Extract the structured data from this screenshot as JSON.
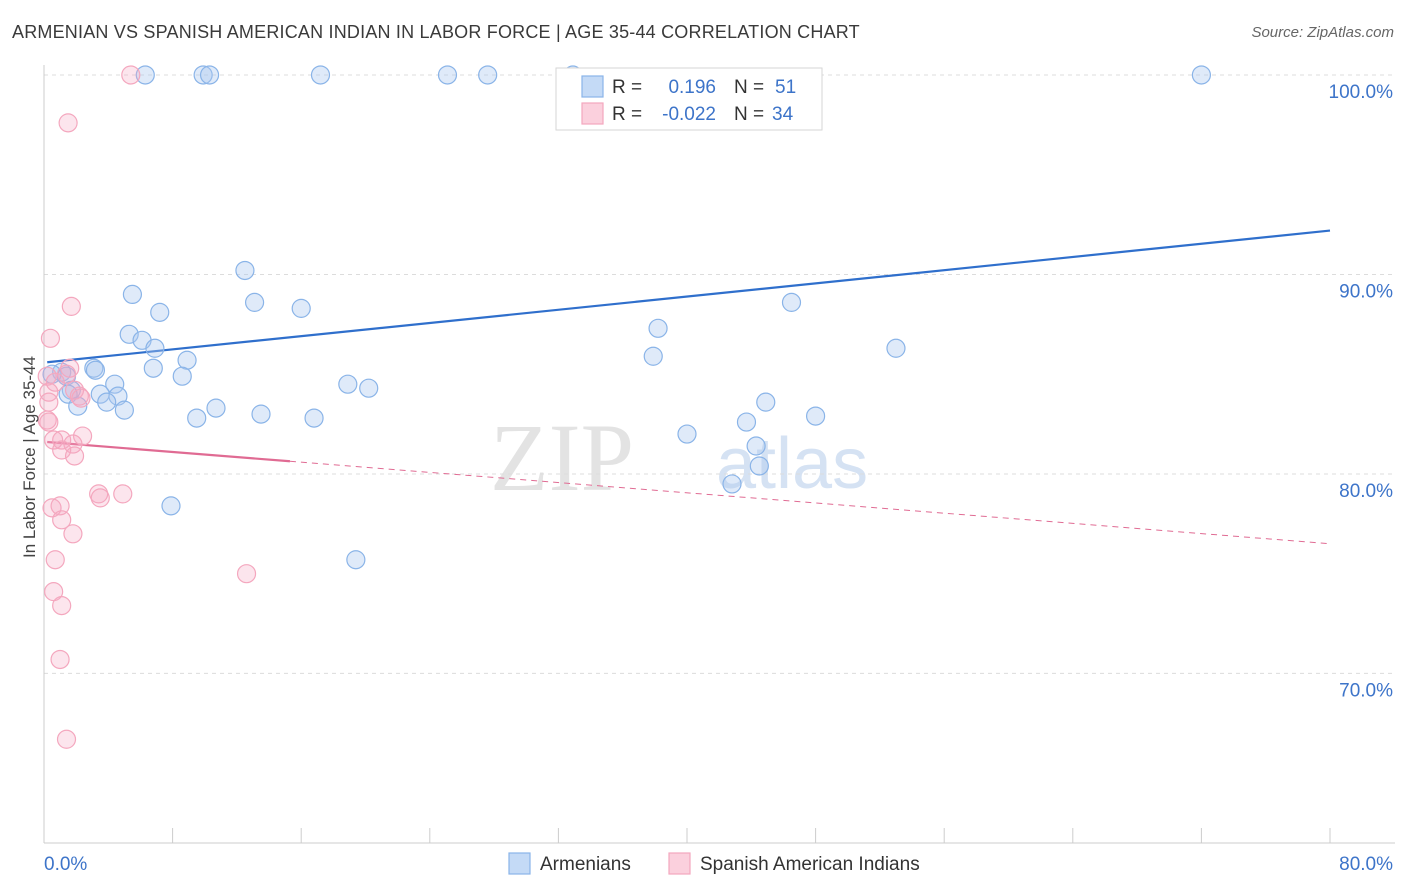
{
  "title": "ARMENIAN VS SPANISH AMERICAN INDIAN IN LABOR FORCE | AGE 35-44 CORRELATION CHART",
  "source": "Source: ZipAtlas.com",
  "watermark": {
    "zip": "ZIP",
    "atlas": "atlas"
  },
  "chart_data": {
    "type": "scatter",
    "title": "ARMENIAN VS SPANISH AMERICAN INDIAN IN LABOR FORCE | AGE 35-44 CORRELATION CHART",
    "xlabel": "",
    "ylabel": "In Labor Force | Age 35-44",
    "xlim": [
      0,
      80
    ],
    "ylim": [
      61.5,
      100.5
    ],
    "x_tick_labels": [
      "0.0%",
      "80.0%"
    ],
    "y_ticks": [
      100,
      90,
      80,
      70
    ],
    "y_tick_labels": [
      "100.0%",
      "90.0%",
      "80.0%",
      "70.0%"
    ],
    "legend": {
      "stats": [
        {
          "r_label": "R =",
          "r_value": "0.196",
          "n_label": "N =",
          "n_value": "51"
        },
        {
          "r_label": "R =",
          "r_value": "-0.022",
          "n_label": "N =",
          "n_value": "34"
        }
      ]
    },
    "series": [
      {
        "name": "Armenians",
        "color": "#8ab4e8",
        "line_color": "#2f6fcc",
        "trend": {
          "x0": 0.2,
          "y0": 85.6,
          "x1": 80,
          "y1": 92.2,
          "dashed_from": null
        },
        "points": [
          [
            6.3,
            100
          ],
          [
            9.9,
            100
          ],
          [
            10.3,
            100
          ],
          [
            17.2,
            100
          ],
          [
            25.1,
            100
          ],
          [
            27.6,
            100
          ],
          [
            32.9,
            100
          ],
          [
            72.0,
            100
          ],
          [
            12.5,
            90.2
          ],
          [
            5.5,
            89.0
          ],
          [
            13.1,
            88.6
          ],
          [
            7.2,
            88.1
          ],
          [
            16.0,
            88.3
          ],
          [
            38.2,
            87.3
          ],
          [
            37.9,
            85.9
          ],
          [
            5.3,
            87.0
          ],
          [
            6.1,
            86.7
          ],
          [
            6.9,
            86.3
          ],
          [
            8.9,
            85.7
          ],
          [
            6.8,
            85.3
          ],
          [
            8.6,
            84.9
          ],
          [
            44.9,
            83.6
          ],
          [
            3.1,
            85.3
          ],
          [
            3.2,
            85.2
          ],
          [
            1.1,
            85.1
          ],
          [
            0.5,
            85.0
          ],
          [
            1.4,
            84.9
          ],
          [
            1.7,
            84.2
          ],
          [
            1.5,
            84.0
          ],
          [
            4.4,
            84.5
          ],
          [
            3.5,
            84.0
          ],
          [
            4.6,
            83.9
          ],
          [
            3.9,
            83.6
          ],
          [
            2.1,
            83.4
          ],
          [
            5.0,
            83.2
          ],
          [
            10.7,
            83.3
          ],
          [
            9.5,
            82.8
          ],
          [
            13.5,
            83.0
          ],
          [
            16.8,
            82.8
          ],
          [
            18.9,
            84.5
          ],
          [
            20.2,
            84.3
          ],
          [
            40.0,
            82.0
          ],
          [
            46.5,
            88.6
          ],
          [
            43.7,
            82.6
          ],
          [
            48.0,
            82.9
          ],
          [
            44.3,
            81.4
          ],
          [
            44.5,
            80.4
          ],
          [
            42.8,
            79.5
          ],
          [
            53.0,
            86.3
          ],
          [
            7.9,
            78.4
          ],
          [
            19.4,
            75.7
          ]
        ]
      },
      {
        "name": "Spanish American Indians",
        "color": "#f4a7be",
        "line_color": "#e06b93",
        "trend": {
          "x0": 0.2,
          "y0": 81.6,
          "x1": 80,
          "y1": 76.5,
          "dashed_from": 15.3
        },
        "points": [
          [
            5.4,
            100
          ],
          [
            1.5,
            97.6
          ],
          [
            1.7,
            88.4
          ],
          [
            0.4,
            86.8
          ],
          [
            1.6,
            85.3
          ],
          [
            1.4,
            85.0
          ],
          [
            0.2,
            84.9
          ],
          [
            0.7,
            84.6
          ],
          [
            0.3,
            84.1
          ],
          [
            1.9,
            84.2
          ],
          [
            2.2,
            83.9
          ],
          [
            2.3,
            83.8
          ],
          [
            0.3,
            83.6
          ],
          [
            0.2,
            82.7
          ],
          [
            0.3,
            82.6
          ],
          [
            2.4,
            81.9
          ],
          [
            0.6,
            81.7
          ],
          [
            1.8,
            81.5
          ],
          [
            1.1,
            81.7
          ],
          [
            1.1,
            81.2
          ],
          [
            1.9,
            80.9
          ],
          [
            3.4,
            79.0
          ],
          [
            3.5,
            78.8
          ],
          [
            4.9,
            79.0
          ],
          [
            0.5,
            78.3
          ],
          [
            1.0,
            78.4
          ],
          [
            1.1,
            77.7
          ],
          [
            1.8,
            77.0
          ],
          [
            0.7,
            75.7
          ],
          [
            12.6,
            75.0
          ],
          [
            0.6,
            74.1
          ],
          [
            1.1,
            73.4
          ],
          [
            1.0,
            70.7
          ],
          [
            1.4,
            66.7
          ]
        ]
      }
    ]
  }
}
